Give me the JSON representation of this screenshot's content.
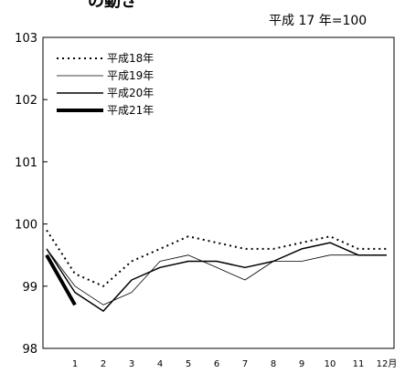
{
  "header": {
    "title_fragment": "の動き",
    "unit_note": "平成 17 年=100"
  },
  "chart_data": {
    "type": "line",
    "x": [
      "",
      "1",
      "2",
      "3",
      "4",
      "5",
      "6",
      "7",
      "8",
      "9",
      "10",
      "11",
      "12月"
    ],
    "y_ticks": [
      "98",
      "99",
      "100",
      "101",
      "102",
      "103"
    ],
    "ylim": [
      98,
      103
    ],
    "grid": false,
    "legend_position": "top-left",
    "series": [
      {
        "name": "平成18年",
        "style": "dotted",
        "color": "#000000",
        "values": [
          99.9,
          99.2,
          99.0,
          99.4,
          99.6,
          99.8,
          99.7,
          99.6,
          99.6,
          99.7,
          99.8,
          99.6,
          99.6
        ]
      },
      {
        "name": "平成19年",
        "style": "thin",
        "color": "#000000",
        "values": [
          99.6,
          99.0,
          98.7,
          98.9,
          99.4,
          99.5,
          99.3,
          99.1,
          99.4,
          99.4,
          99.5,
          99.5,
          99.5
        ]
      },
      {
        "name": "平成20年",
        "style": "medium",
        "color": "#000000",
        "values": [
          99.6,
          98.9,
          98.6,
          99.1,
          99.3,
          99.4,
          99.4,
          99.3,
          99.4,
          99.6,
          99.7,
          99.5,
          99.5
        ]
      },
      {
        "name": "平成21年",
        "style": "thick",
        "color": "#000000",
        "values": [
          99.5,
          98.7,
          null,
          null,
          null,
          null,
          null,
          null,
          null,
          null,
          null,
          null,
          null
        ]
      }
    ]
  }
}
